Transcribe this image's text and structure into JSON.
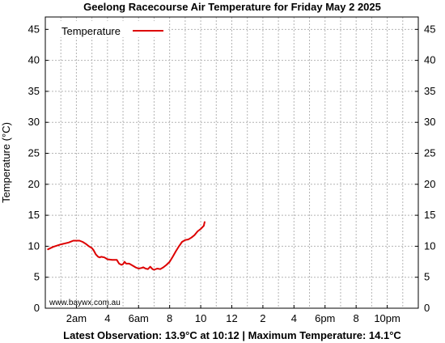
{
  "chart_data": {
    "type": "line",
    "title": "Geelong Racecourse Air Temperature  for Friday May 2 2025",
    "ylabel": "Temperature (°C)",
    "xlabel": "",
    "xlim": [
      0,
      24
    ],
    "ylim": [
      0,
      47
    ],
    "y_ticks": [
      0,
      5,
      10,
      15,
      20,
      25,
      30,
      35,
      40,
      45
    ],
    "x_ticks": [
      {
        "hour": 2,
        "label": "2am"
      },
      {
        "hour": 4,
        "label": "4"
      },
      {
        "hour": 6,
        "label": "6am"
      },
      {
        "hour": 8,
        "label": "8"
      },
      {
        "hour": 10,
        "label": "10"
      },
      {
        "hour": 12,
        "label": "12"
      },
      {
        "hour": 14,
        "label": "2"
      },
      {
        "hour": 16,
        "label": "4"
      },
      {
        "hour": 18,
        "label": "6pm"
      },
      {
        "hour": 20,
        "label": "8"
      },
      {
        "hour": 22,
        "label": "10pm"
      }
    ],
    "grid": true,
    "legend_position": "top-left",
    "series": [
      {
        "name": "Temperature",
        "color": "#dd0000",
        "points": [
          [
            0.17,
            9.5
          ],
          [
            0.5,
            9.9
          ],
          [
            1.0,
            10.3
          ],
          [
            1.5,
            10.6
          ],
          [
            1.8,
            10.9
          ],
          [
            2.0,
            10.9
          ],
          [
            2.2,
            10.9
          ],
          [
            2.4,
            10.7
          ],
          [
            2.6,
            10.4
          ],
          [
            2.8,
            10.0
          ],
          [
            3.0,
            9.7
          ],
          [
            3.1,
            9.4
          ],
          [
            3.25,
            8.7
          ],
          [
            3.4,
            8.3
          ],
          [
            3.5,
            8.2
          ],
          [
            3.6,
            8.3
          ],
          [
            3.8,
            8.2
          ],
          [
            4.0,
            7.9
          ],
          [
            4.3,
            7.8
          ],
          [
            4.6,
            7.8
          ],
          [
            4.75,
            7.2
          ],
          [
            4.9,
            7.0
          ],
          [
            5.0,
            7.1
          ],
          [
            5.1,
            7.5
          ],
          [
            5.2,
            7.2
          ],
          [
            5.4,
            7.2
          ],
          [
            5.6,
            6.9
          ],
          [
            5.8,
            6.6
          ],
          [
            6.0,
            6.4
          ],
          [
            6.2,
            6.5
          ],
          [
            6.3,
            6.6
          ],
          [
            6.45,
            6.4
          ],
          [
            6.6,
            6.3
          ],
          [
            6.75,
            6.7
          ],
          [
            6.9,
            6.3
          ],
          [
            7.0,
            6.2
          ],
          [
            7.2,
            6.4
          ],
          [
            7.4,
            6.3
          ],
          [
            7.6,
            6.6
          ],
          [
            7.8,
            7.0
          ],
          [
            8.0,
            7.5
          ],
          [
            8.2,
            8.3
          ],
          [
            8.4,
            9.2
          ],
          [
            8.6,
            10.0
          ],
          [
            8.8,
            10.7
          ],
          [
            9.0,
            11.0
          ],
          [
            9.2,
            11.1
          ],
          [
            9.4,
            11.4
          ],
          [
            9.6,
            11.8
          ],
          [
            9.8,
            12.4
          ],
          [
            10.0,
            12.8
          ],
          [
            10.2,
            13.3
          ],
          [
            10.25,
            13.9
          ]
        ]
      }
    ],
    "credit": "www.baywx.com.au",
    "footer": "Latest Observation: 13.9°C at 10:12 | Maximum Temperature: 14.1°C"
  }
}
